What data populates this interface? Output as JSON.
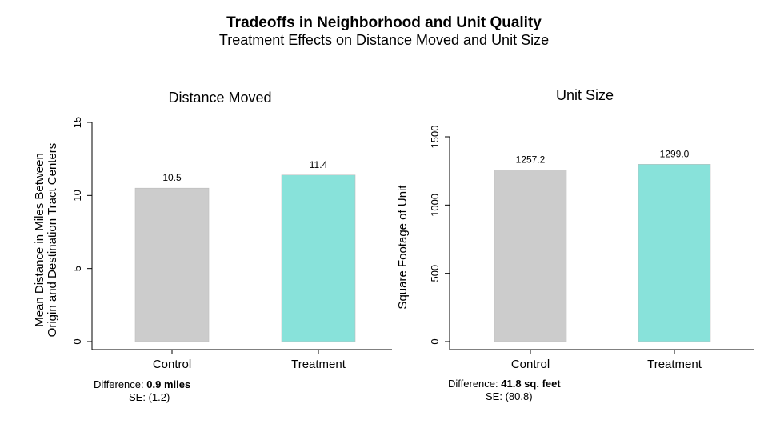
{
  "title": "Tradeoffs in Neighborhood and Unit Quality",
  "subtitle": "Treatment Effects on Distance Moved and Unit Size",
  "colors": {
    "control": "#cccccc",
    "treatment": "#88e2da",
    "axis": "#000000"
  },
  "chart_data": [
    {
      "type": "bar",
      "title": "Distance Moved",
      "ylabel": "Mean Distance in Miles Between Origin and Destination Tract Centers",
      "categories": [
        "Control",
        "Treatment"
      ],
      "values": [
        10.5,
        11.4
      ],
      "data_labels": [
        "10.5",
        "11.4"
      ],
      "ylim": [
        0,
        15
      ],
      "yticks": [
        0,
        5,
        10,
        15
      ],
      "grid": false,
      "note": {
        "diff_label": "Difference:",
        "diff_value": "0.9 miles",
        "se_label": "SE:",
        "se_value": "(1.2)"
      }
    },
    {
      "type": "bar",
      "title": "Unit Size",
      "ylabel": "Square Footage of Unit",
      "categories": [
        "Control",
        "Treatment"
      ],
      "values": [
        1257.2,
        1299.0
      ],
      "data_labels": [
        "1257.2",
        "1299.0"
      ],
      "ylim": [
        0,
        1500
      ],
      "yticks": [
        0,
        500,
        1000,
        1500
      ],
      "grid": false,
      "note": {
        "diff_label": "Difference:",
        "diff_value": "41.8 sq. feet",
        "se_label": "SE:",
        "se_value": "(80.8)"
      }
    }
  ]
}
